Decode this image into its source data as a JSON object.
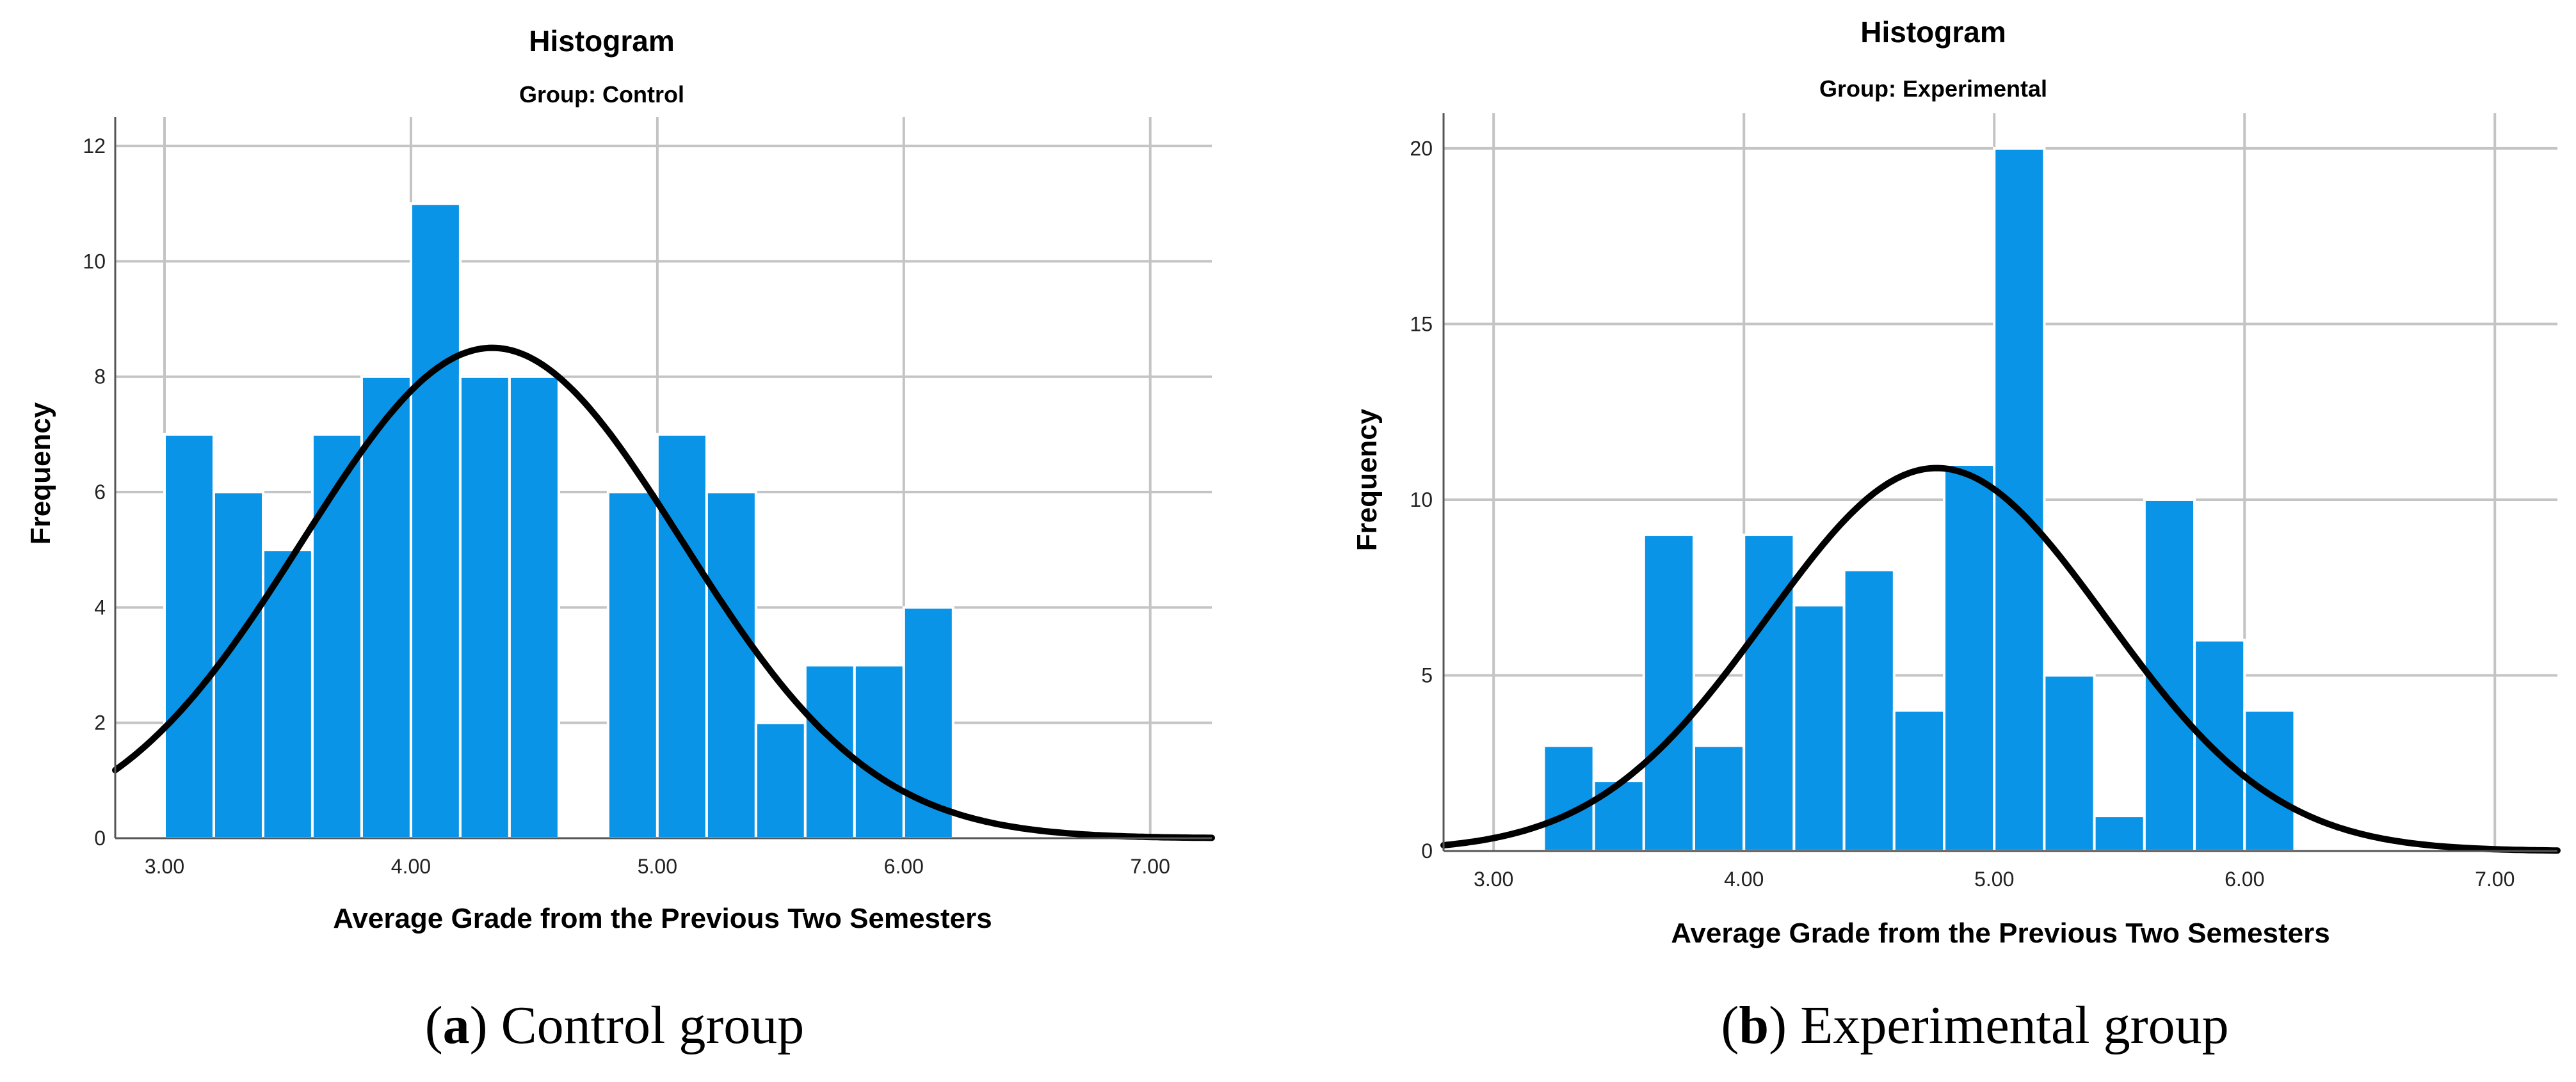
{
  "chart_data": [
    {
      "type": "bar",
      "title": "Histogram",
      "subtitle": "Group: Control",
      "xlabel": "Average Grade from the Previous Two Semesters",
      "ylabel": "Frequency",
      "caption_letter": "a",
      "caption_rest": " Control group",
      "xlim": [
        2.8,
        7.25
      ],
      "ylim": [
        0,
        12.5
      ],
      "bin_width": 0.2,
      "x_ticks": [
        3,
        4,
        5,
        6,
        7
      ],
      "x_tick_labels": [
        "3.00",
        "4.00",
        "5.00",
        "6.00",
        "7.00"
      ],
      "y_ticks": [
        0,
        2,
        4,
        6,
        8,
        10,
        12
      ],
      "y_tick_labels": [
        "0",
        "2",
        "4",
        "6",
        "8",
        "10",
        "12"
      ],
      "bins": [
        {
          "x0": 3.0,
          "count": 7
        },
        {
          "x0": 3.2,
          "count": 6
        },
        {
          "x0": 3.4,
          "count": 5
        },
        {
          "x0": 3.6,
          "count": 7
        },
        {
          "x0": 3.8,
          "count": 8
        },
        {
          "x0": 4.0,
          "count": 11
        },
        {
          "x0": 4.2,
          "count": 8
        },
        {
          "x0": 4.4,
          "count": 8
        },
        {
          "x0": 4.6,
          "count": 0
        },
        {
          "x0": 4.8,
          "count": 6
        },
        {
          "x0": 5.0,
          "count": 7
        },
        {
          "x0": 5.2,
          "count": 6
        },
        {
          "x0": 5.4,
          "count": 2
        },
        {
          "x0": 5.6,
          "count": 3
        },
        {
          "x0": 5.8,
          "count": 3
        },
        {
          "x0": 6.0,
          "count": 4
        }
      ],
      "normal_curve": {
        "mean": 4.33,
        "peak": 8.5,
        "sd": 0.77
      }
    },
    {
      "type": "bar",
      "title": "Histogram",
      "subtitle": "Group: Experimental",
      "xlabel": "Average Grade from the Previous Two Semesters",
      "ylabel": "Frequency",
      "caption_letter": "b",
      "caption_rest": " Experimental group",
      "xlim": [
        2.8,
        7.25
      ],
      "ylim": [
        0,
        21
      ],
      "bin_width": 0.2,
      "x_ticks": [
        3,
        4,
        5,
        6,
        7
      ],
      "x_tick_labels": [
        "3.00",
        "4.00",
        "5.00",
        "6.00",
        "7.00"
      ],
      "y_ticks": [
        0,
        5,
        10,
        15,
        20
      ],
      "y_tick_labels": [
        "0",
        "5",
        "10",
        "15",
        "20"
      ],
      "bins": [
        {
          "x0": 3.2,
          "count": 3
        },
        {
          "x0": 3.4,
          "count": 2
        },
        {
          "x0": 3.6,
          "count": 9
        },
        {
          "x0": 3.8,
          "count": 3
        },
        {
          "x0": 4.0,
          "count": 9
        },
        {
          "x0": 4.2,
          "count": 7
        },
        {
          "x0": 4.4,
          "count": 8
        },
        {
          "x0": 4.6,
          "count": 4
        },
        {
          "x0": 4.8,
          "count": 11
        },
        {
          "x0": 5.0,
          "count": 20
        },
        {
          "x0": 5.2,
          "count": 5
        },
        {
          "x0": 5.4,
          "count": 1
        },
        {
          "x0": 5.6,
          "count": 10
        },
        {
          "x0": 5.8,
          "count": 6
        },
        {
          "x0": 6.0,
          "count": 4
        }
      ],
      "normal_curve": {
        "mean": 4.77,
        "peak": 10.9,
        "sd": 0.68
      }
    }
  ],
  "colors": {
    "bar": "#0a94e8",
    "curve": "#000000",
    "grid": "#c4c4c4"
  }
}
